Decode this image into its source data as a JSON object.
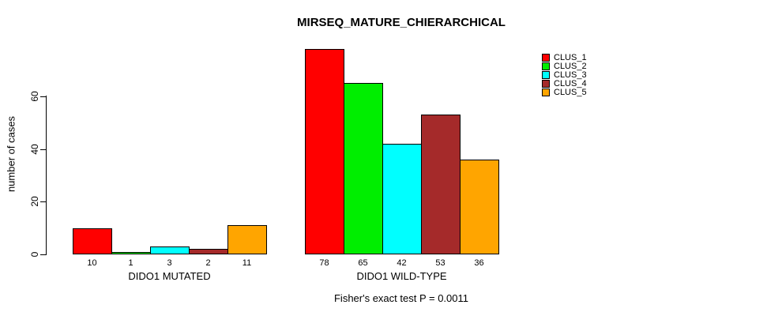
{
  "chart_data": {
    "type": "bar",
    "title": "MIRSEQ_MATURE_CHIERARCHICAL",
    "ylabel": "number of cases",
    "ylim": [
      0,
      60
    ],
    "yticks": [
      0,
      20,
      40,
      60
    ],
    "grid": false,
    "legend": {
      "position": "right",
      "entries": [
        {
          "label": "CLUS_1",
          "color": "#FF0000"
        },
        {
          "label": "CLUS_2",
          "color": "#00EE00"
        },
        {
          "label": "CLUS_3",
          "color": "#00FFFF"
        },
        {
          "label": "CLUS_4",
          "color": "#A52A2A"
        },
        {
          "label": "CLUS_5",
          "color": "#FFA500"
        }
      ]
    },
    "series_names": [
      "CLUS_1",
      "CLUS_2",
      "CLUS_3",
      "CLUS_4",
      "CLUS_5"
    ],
    "groups": [
      {
        "label": "DIDO1 MUTATED",
        "values": [
          10,
          1,
          3,
          2,
          11
        ]
      },
      {
        "label": "DIDO1 WILD-TYPE",
        "values": [
          78,
          65,
          42,
          53,
          36
        ]
      }
    ],
    "annotation": "Fisher's exact test P = 0.0011"
  }
}
